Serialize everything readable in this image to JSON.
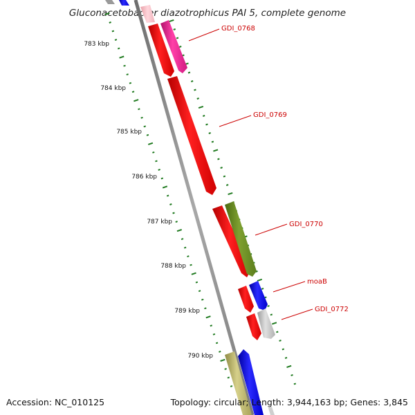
{
  "header": {
    "title": "Gluconacetobacter diazotrophicus PAI 5, complete genome"
  },
  "footer": {
    "accession": "Accession: NC_010125",
    "summary": "Topology: circular; Length: 3,944,163 bp; Genes: 3,845"
  },
  "ruler": {
    "labels": [
      "783 kbp",
      "784 kbp",
      "785 kbp",
      "786 kbp",
      "787 kbp",
      "788 kbp",
      "789 kbp",
      "790 kbp"
    ]
  },
  "gene_labels": [
    "GDI_0768",
    "GDI_0769",
    "GDI_0770",
    "moaB",
    "GDI_0772"
  ],
  "colors": {
    "backbone": "#8a8a8a",
    "ticks": "#1f7a1f",
    "forward_red": "#ff0000",
    "magenta": "#f0208f",
    "olive": "#6b8e23",
    "blue": "#0000ff",
    "grey_gene": "#c8c8c8",
    "khaki": "#bdb76b",
    "pink": "#ffc0cb",
    "label_red": "#cc0000"
  }
}
